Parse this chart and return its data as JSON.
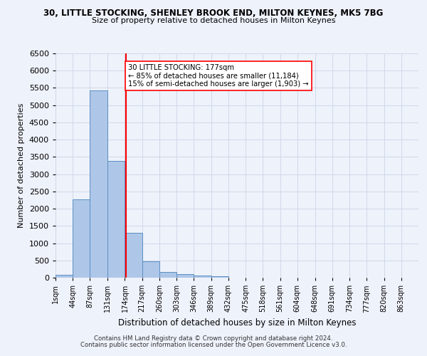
{
  "title": "30, LITTLE STOCKING, SHENLEY BROOK END, MILTON KEYNES, MK5 7BG",
  "subtitle": "Size of property relative to detached houses in Milton Keynes",
  "xlabel": "Distribution of detached houses by size in Milton Keynes",
  "ylabel": "Number of detached properties",
  "footer_line1": "Contains HM Land Registry data © Crown copyright and database right 2024.",
  "footer_line2": "Contains public sector information licensed under the Open Government Licence v3.0.",
  "bin_labels": [
    "1sqm",
    "44sqm",
    "87sqm",
    "131sqm",
    "174sqm",
    "217sqm",
    "260sqm",
    "303sqm",
    "346sqm",
    "389sqm",
    "432sqm",
    "475sqm",
    "518sqm",
    "561sqm",
    "604sqm",
    "648sqm",
    "691sqm",
    "734sqm",
    "777sqm",
    "820sqm",
    "863sqm"
  ],
  "bar_values": [
    75,
    2280,
    5420,
    3380,
    1310,
    480,
    165,
    95,
    70,
    40,
    0,
    0,
    0,
    0,
    0,
    0,
    0,
    0,
    0,
    0,
    0
  ],
  "bar_color": "#aec6e8",
  "bar_edge_color": "#5a8fc2",
  "grid_color": "#d0d8e8",
  "background_color": "#eef2fb",
  "vline_color": "red",
  "annotation_text": "30 LITTLE STOCKING: 177sqm\n← 85% of detached houses are smaller (11,184)\n15% of semi-detached houses are larger (1,903) →",
  "ylim": [
    0,
    6500
  ],
  "property_sqm": 177,
  "bin_starts": [
    1,
    44,
    87,
    131,
    174,
    217,
    260,
    303,
    346,
    389,
    432,
    475,
    518,
    561,
    604,
    648,
    691,
    734,
    777,
    820,
    863
  ],
  "bin_width": 43,
  "yticks": [
    0,
    500,
    1000,
    1500,
    2000,
    2500,
    3000,
    3500,
    4000,
    4500,
    5000,
    5500,
    6000,
    6500
  ]
}
